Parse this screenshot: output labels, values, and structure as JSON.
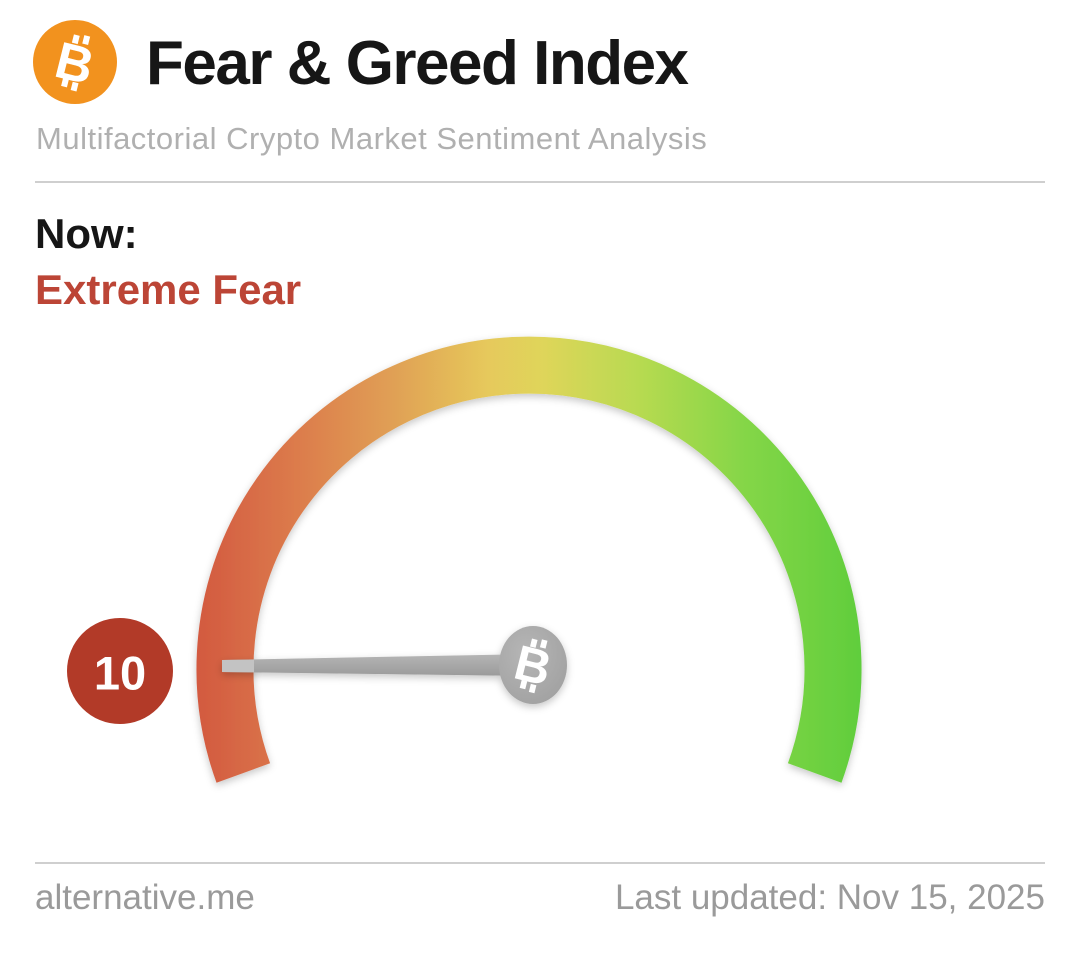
{
  "theme": {
    "accent": "#f2921e",
    "title-color": "#161616",
    "subtitle-color": "#b0b0b0",
    "fear-red": "#bc4536",
    "divider-color": "#cfcfcf",
    "footer-color": "#9a9a9a",
    "needle-gray": "#a9a9a9",
    "badge-red": "#b23a28"
  },
  "header": {
    "logo_icon": "bitcoin-icon",
    "title": "Fear & Greed Index",
    "subtitle": "Multifactorial Crypto Market Sentiment Analysis"
  },
  "status": {
    "label": "Now:",
    "value": "Extreme Fear"
  },
  "chart_data": {
    "type": "gauge",
    "title": "Fear & Greed Index",
    "value": 10,
    "value_label": "10",
    "min": 0,
    "max": 100,
    "classification": "Extreme Fear",
    "arc_sweep_degrees": 200,
    "arc_colors": [
      "#d2573f",
      "#dc7c4c",
      "#e0a055",
      "#e6c95b",
      "#dfd55a",
      "#b8da51",
      "#84d647",
      "#5ecd3c"
    ],
    "arc_color_offsets": [
      0,
      0.16,
      0.3,
      0.44,
      0.52,
      0.66,
      0.82,
      1
    ],
    "badge_color": "#b23a28",
    "needle_color": "#a9a9a9",
    "hub_icon": "bitcoin-icon"
  },
  "footer": {
    "source": "alternative.me",
    "last_updated": "Last updated: Nov 15, 2025"
  }
}
